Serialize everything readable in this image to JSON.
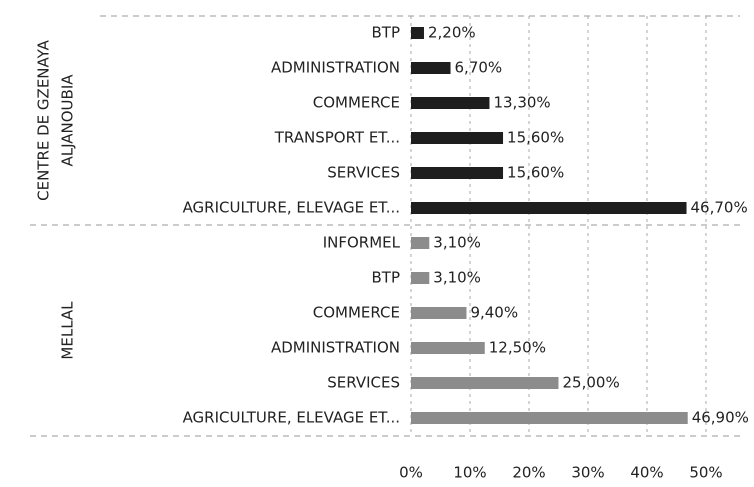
{
  "chart_data": {
    "type": "bar",
    "orientation": "horizontal",
    "groups": [
      {
        "label_lines": [
          "CENTRE DE GZENAYA",
          "ALJANOUBIA"
        ],
        "color": "#1e1e1e",
        "categories": [
          "BTP",
          "ADMINISTRATION",
          "COMMERCE",
          "TRANSPORT ET...",
          "SERVICES",
          "AGRICULTURE, ELEVAGE ET..."
        ],
        "values": [
          2.2,
          6.7,
          13.3,
          15.6,
          15.6,
          46.7
        ],
        "value_labels": [
          "2,20%",
          "6,70%",
          "13,30%",
          "15,60%",
          "15,60%",
          "46,70%"
        ]
      },
      {
        "label_lines": [
          "MELLAL"
        ],
        "color": "#8c8c8c",
        "categories": [
          "INFORMEL",
          "BTP",
          "COMMERCE",
          "ADMINISTRATION",
          "SERVICES",
          "AGRICULTURE, ELEVAGE ET..."
        ],
        "values": [
          3.1,
          3.1,
          9.4,
          12.5,
          25.0,
          46.9
        ],
        "value_labels": [
          "3,10%",
          "3,10%",
          "9,40%",
          "12,50%",
          "25,00%",
          "46,90%"
        ]
      }
    ],
    "xlim": [
      0,
      50
    ],
    "xticks": [
      {
        "value": 0,
        "label": "0%"
      },
      {
        "value": 10,
        "label": "10%"
      },
      {
        "value": 20,
        "label": "20%"
      },
      {
        "value": 30,
        "label": "30%"
      },
      {
        "value": 40,
        "label": "40%"
      },
      {
        "value": 50,
        "label": "50%"
      }
    ],
    "grid": true
  }
}
